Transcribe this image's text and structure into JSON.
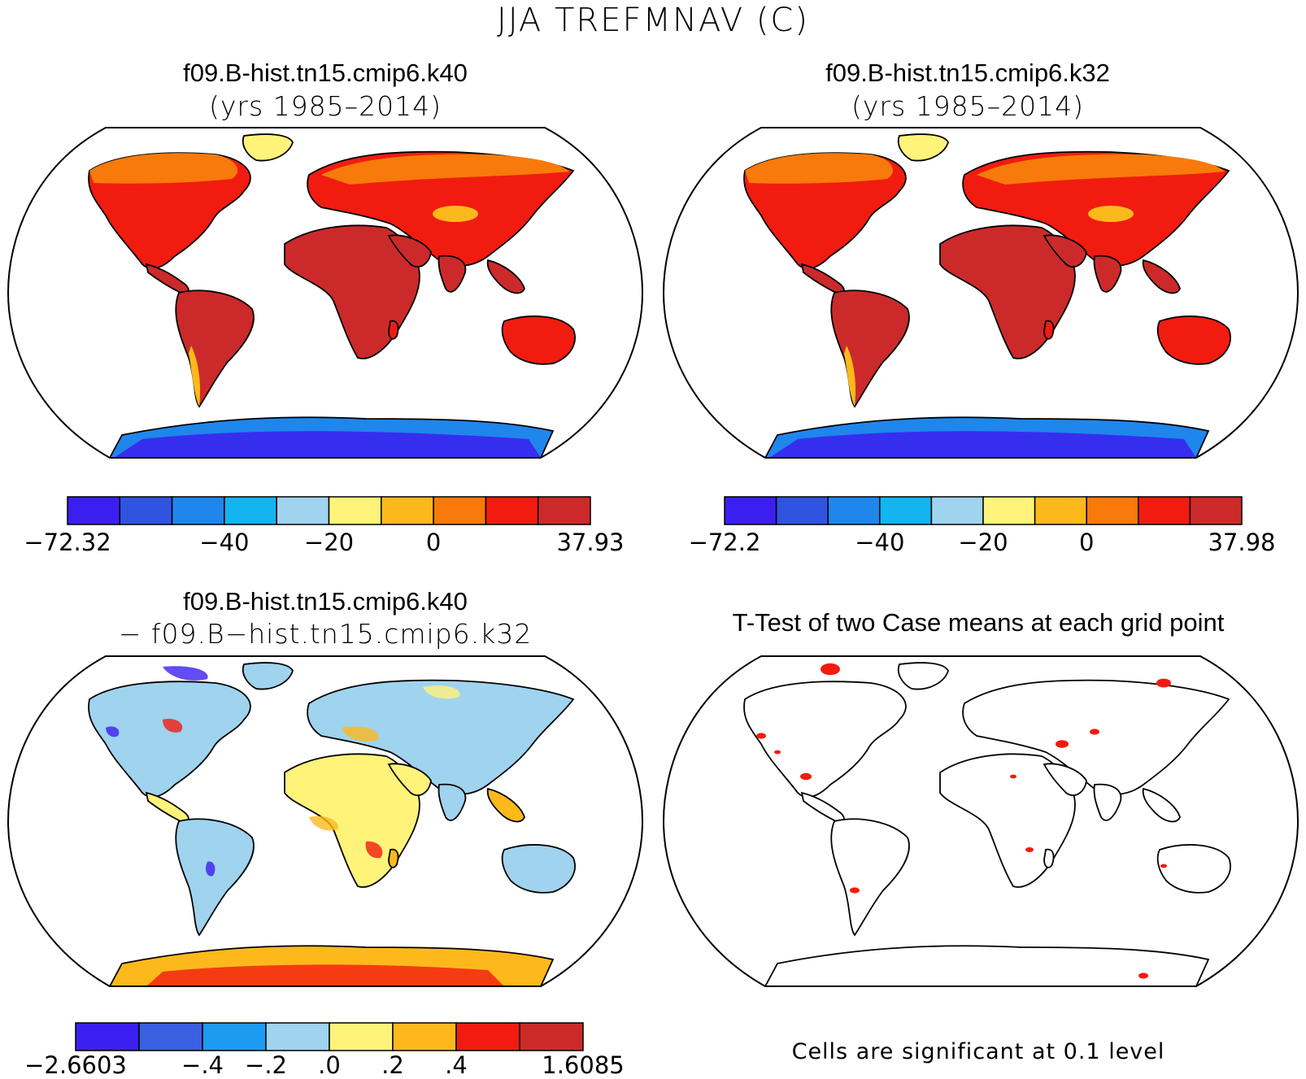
{
  "main_title": "JJA TREFMNAV (C)",
  "panels": [
    {
      "title": "f09.B-hist.tn15.cmip6.k40",
      "subtitle": "(yrs 1985–2014)",
      "colorbar": {
        "colors": [
          "#3b1ff0",
          "#2f55e0",
          "#1f86ec",
          "#14b4ee",
          "#9fd3ee",
          "#fff37a",
          "#fdb91c",
          "#f77a0a",
          "#f21b10",
          "#cc2a2a"
        ],
        "labels": [
          "−72.32",
          "−40",
          "−20",
          "0",
          "37.93"
        ],
        "label_positions": [
          0,
          3,
          5,
          7,
          10
        ]
      }
    },
    {
      "title": "f09.B-hist.tn15.cmip6.k32",
      "subtitle": "(yrs 1985–2014)",
      "colorbar": {
        "colors": [
          "#3b1ff0",
          "#2f55e0",
          "#1f86ec",
          "#14b4ee",
          "#9fd3ee",
          "#fff37a",
          "#fdb91c",
          "#f77a0a",
          "#f21b10",
          "#cc2a2a"
        ],
        "labels": [
          "−72.2",
          "−40",
          "−20",
          "0",
          "37.98"
        ],
        "label_positions": [
          0,
          3,
          5,
          7,
          10
        ]
      }
    },
    {
      "title": "f09.B-hist.tn15.cmip6.k40",
      "subtitle": "− f09.B−hist.tn15.cmip6.k32",
      "colorbar": {
        "colors": [
          "#3b1ff0",
          "#3a5fe0",
          "#1c9bf0",
          "#9fd3ee",
          "#fff37a",
          "#fdb91c",
          "#f21b10",
          "#cc2a2a"
        ],
        "labels": [
          "−2.6603",
          "−.4",
          "−.2",
          ".0",
          ".2",
          ".4",
          "1.6085"
        ],
        "label_positions": [
          0,
          2,
          3,
          4,
          5,
          6,
          8
        ]
      }
    },
    {
      "title": "T-Test of two Case means at each grid point",
      "note": "Cells are significant at 0.1 level"
    }
  ],
  "map_colors": {
    "land_warm": "#cc2a2a",
    "land_red": "#f21b10",
    "land_orange": "#f77a0a",
    "land_amber": "#fdb91c",
    "land_yellow": "#fff37a",
    "ice_blue": "#1f86ec",
    "ice_deep": "#3b1ff0",
    "diff_light": "#9fd3ee",
    "sig_red": "#f21b10"
  }
}
